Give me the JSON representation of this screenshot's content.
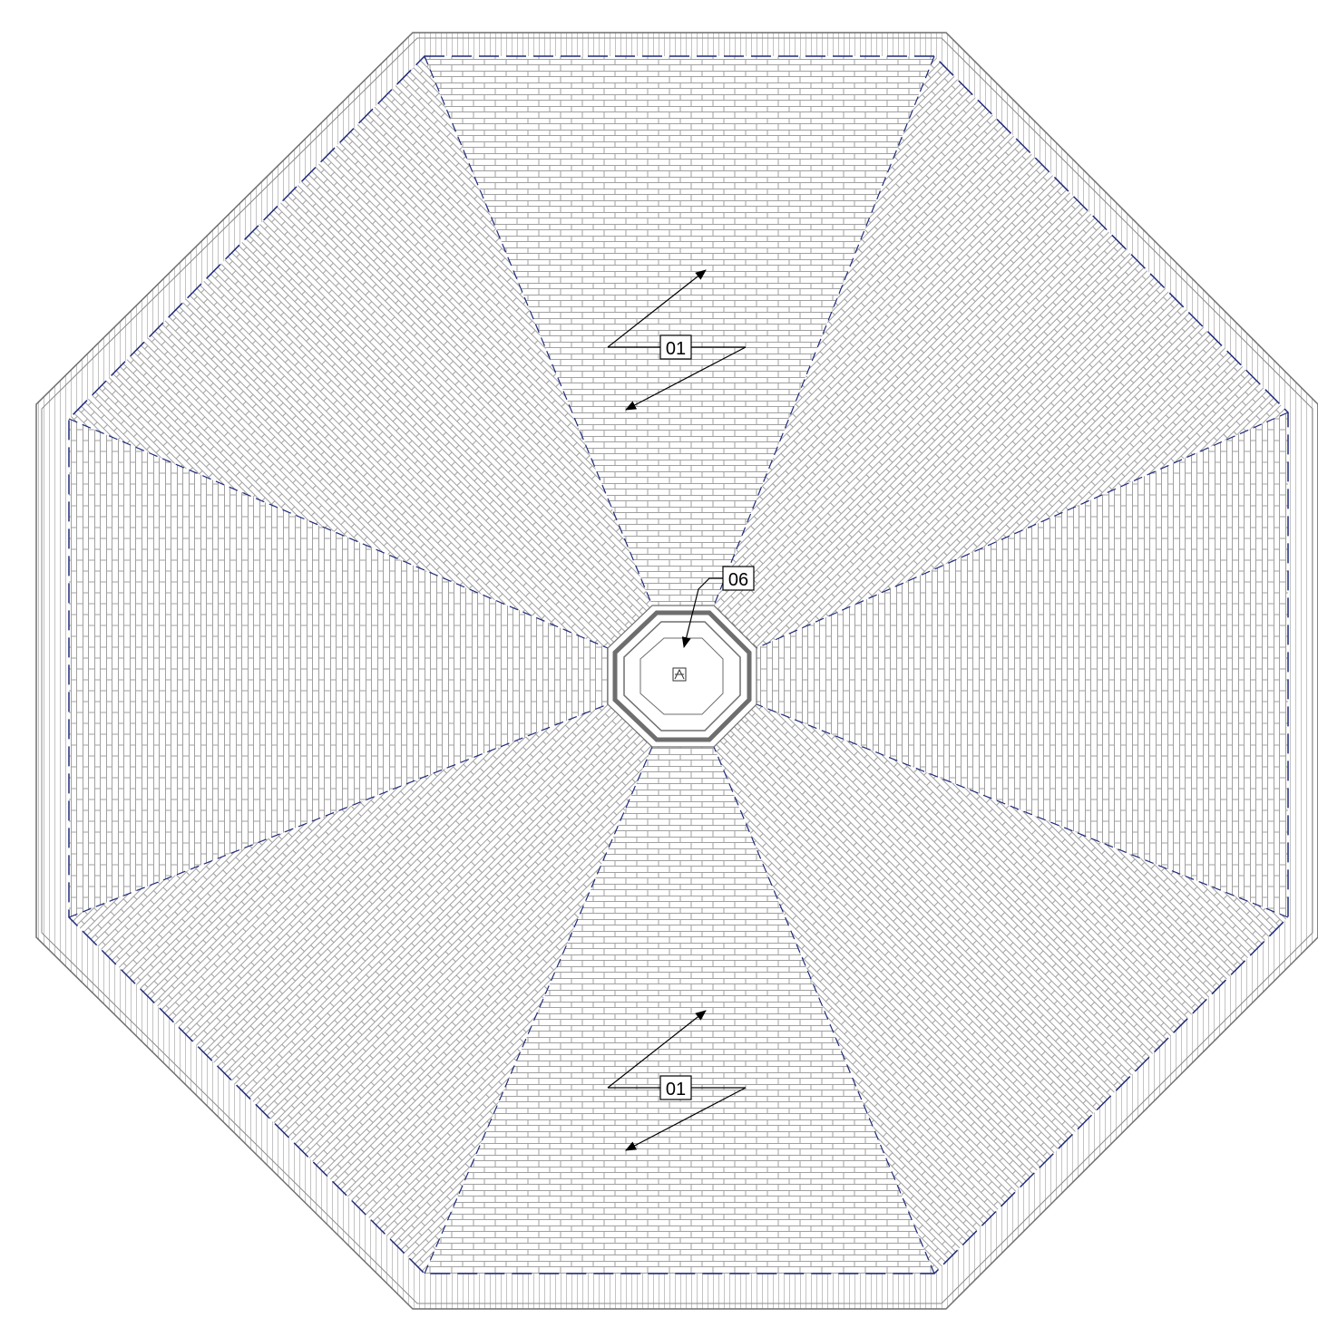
{
  "colors": {
    "background": "#ffffff",
    "outline": "#6f6f6f",
    "tile_line": "#9a9a9a",
    "hip_line": "#1f2a7a",
    "lantern": "#6e6e6e",
    "leader": "#000000"
  },
  "icons": {
    "arrow": "arrowhead",
    "lantern_symbol": "small-boxed-symbol"
  },
  "callouts": {
    "top": {
      "label": "01"
    },
    "center": {
      "label": "06"
    },
    "bottom": {
      "label": "01"
    }
  }
}
